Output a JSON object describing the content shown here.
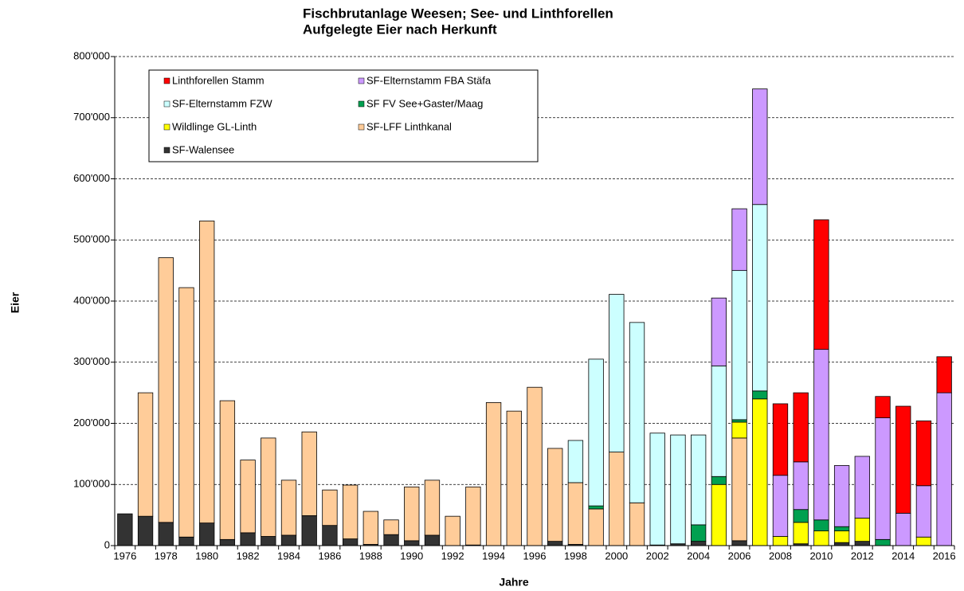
{
  "chart_data": {
    "type": "stacked_bar",
    "title": "Fischbrutanlage Weesen;  See- und Linthforellen",
    "subtitle": "Aufgelegte Eier nach Herkunft",
    "x_label": "Jahre",
    "y_label": "Eier",
    "categories": [
      "1976",
      null,
      "1978",
      null,
      "1980",
      null,
      "1982",
      null,
      "1984",
      null,
      "1986",
      null,
      "1988",
      null,
      "1990",
      null,
      "1992",
      null,
      "1994",
      null,
      "1996",
      null,
      "1998",
      null,
      "2000",
      null,
      "2002",
      null,
      "2004",
      null,
      "2006",
      null,
      "2008",
      null,
      "2010",
      null,
      "2012",
      null,
      "2014",
      null,
      "2016"
    ],
    "ylim": [
      0,
      800000
    ],
    "yticks": [
      0,
      {
        "value": 100000,
        "label": "100'000"
      },
      {
        "value": 200000,
        "label": "200'000"
      },
      {
        "value": 300000,
        "label": "300'000"
      },
      {
        "value": 400000,
        "label": "400'000"
      },
      {
        "value": 500000,
        "label": "500'000"
      },
      {
        "value": 600000,
        "label": "600'000"
      },
      {
        "value": 700000,
        "label": "700'000"
      },
      {
        "value": 800000,
        "label": "800'000"
      }
    ],
    "grid": true,
    "legend": "upper left",
    "series": [
      {
        "name": "Linthforellen Stamm",
        "color": "#ff0000",
        "values": [
          0,
          0,
          0,
          0,
          0,
          0,
          0,
          0,
          0,
          0,
          0,
          0,
          0,
          0,
          0,
          0,
          0,
          0,
          0,
          0,
          0,
          0,
          0,
          0,
          0,
          0,
          0,
          0,
          0,
          0,
          0,
          0,
          117000,
          113000,
          212000,
          0,
          0,
          35000,
          175000,
          106000,
          59000
        ]
      },
      {
        "name": "SF-Elternstamm FBA Stäfa",
        "color": "#cc99ff",
        "values": [
          0,
          0,
          0,
          0,
          0,
          0,
          0,
          0,
          0,
          0,
          0,
          0,
          0,
          0,
          0,
          0,
          0,
          0,
          0,
          0,
          0,
          0,
          0,
          0,
          0,
          0,
          0,
          0,
          0,
          111000,
          101000,
          189000,
          100000,
          78000,
          279000,
          100000,
          101000,
          199000,
          53000,
          84000,
          250000
        ]
      },
      {
        "name": "SF-Elternstamm FZW",
        "color": "#ccffff",
        "values": [
          0,
          0,
          0,
          0,
          0,
          0,
          0,
          0,
          0,
          0,
          0,
          0,
          0,
          0,
          0,
          0,
          0,
          0,
          0,
          0,
          0,
          0,
          69000,
          240000,
          258000,
          295000,
          183000,
          178000,
          147000,
          181000,
          244000,
          305000,
          0,
          0,
          0,
          0,
          0,
          0,
          0,
          0,
          0
        ]
      },
      {
        "name": "SF FV See+Gaster/Maag",
        "color": "#00a050",
        "values": [
          0,
          0,
          0,
          0,
          0,
          0,
          0,
          0,
          0,
          0,
          0,
          0,
          0,
          0,
          0,
          0,
          0,
          0,
          0,
          0,
          0,
          0,
          0,
          5000,
          0,
          0,
          0,
          0,
          27000,
          13000,
          4000,
          13000,
          0,
          21000,
          18000,
          7000,
          0,
          10000,
          0,
          0,
          0
        ]
      },
      {
        "name": "Wildlinge GL-Linth",
        "color": "#ffff00",
        "values": [
          0,
          0,
          0,
          0,
          0,
          0,
          0,
          0,
          0,
          0,
          0,
          0,
          0,
          0,
          0,
          0,
          0,
          0,
          0,
          0,
          0,
          0,
          0,
          0,
          0,
          0,
          0,
          0,
          0,
          100000,
          26000,
          240000,
          15000,
          35000,
          24000,
          19000,
          38000,
          0,
          0,
          14000,
          0
        ]
      },
      {
        "name": "SF-LFF Linthkanal",
        "color": "#ffcc99",
        "values": [
          0,
          202000,
          433000,
          408000,
          494000,
          227000,
          119000,
          161000,
          90000,
          137000,
          58000,
          88000,
          54000,
          24000,
          88000,
          90000,
          48000,
          95000,
          234000,
          220000,
          259000,
          152000,
          101000,
          60000,
          153000,
          70000,
          0,
          0,
          0,
          0,
          168000,
          0,
          0,
          0,
          0,
          0,
          0,
          0,
          0,
          0,
          0
        ]
      },
      {
        "name": "SF-Walensee",
        "color": "#333333",
        "values": [
          52000,
          48000,
          38000,
          14000,
          37000,
          10000,
          21000,
          15000,
          17000,
          49000,
          33000,
          11000,
          2000,
          18000,
          8000,
          17000,
          0,
          1000,
          0,
          0,
          0,
          7000,
          2000,
          0,
          0,
          0,
          1000,
          3000,
          7000,
          0,
          8000,
          0,
          0,
          3000,
          0,
          5000,
          7000,
          0,
          0,
          0,
          0
        ]
      }
    ]
  }
}
